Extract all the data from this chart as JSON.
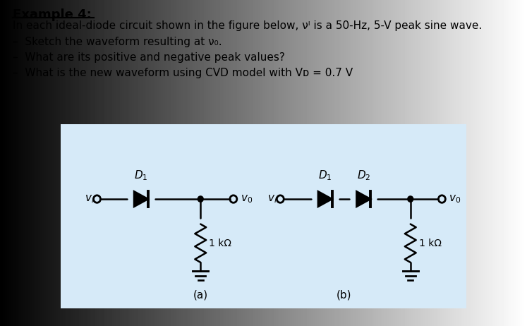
{
  "title": "Example 4:",
  "line1": "In each ideal-diode circuit shown in the figure below, vᴵ is a 50-Hz, 5-V peak sine wave.",
  "bullet1": "Sketch the waveform resulting at v₀.",
  "bullet2": "What are its positive and negative peak values?",
  "bullet3": "What is the new waveform using CVD model with Vᴅ = 0.7 V",
  "circuit_bg": "#d6eaf8",
  "text_color": "#000000",
  "label_a": "(a)",
  "label_b": "(b)"
}
